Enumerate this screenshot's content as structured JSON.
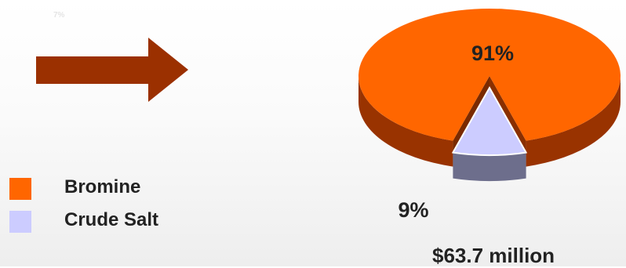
{
  "chart_data": {
    "type": "pie",
    "slices": [
      {
        "label": "Bromine",
        "value": 91,
        "value_label": "91%",
        "color": "#ff6600",
        "side_color": "#993300"
      },
      {
        "label": "Crude Salt",
        "value": 9,
        "value_label": "9%",
        "color": "#ccccff",
        "side_color": "#6d6e8c"
      }
    ],
    "total_label": "$63.7 million",
    "legend_position": "left",
    "style": "3d exploded"
  },
  "decor": {
    "arrow_color": "#9b3000",
    "faint_mark": "7%"
  }
}
